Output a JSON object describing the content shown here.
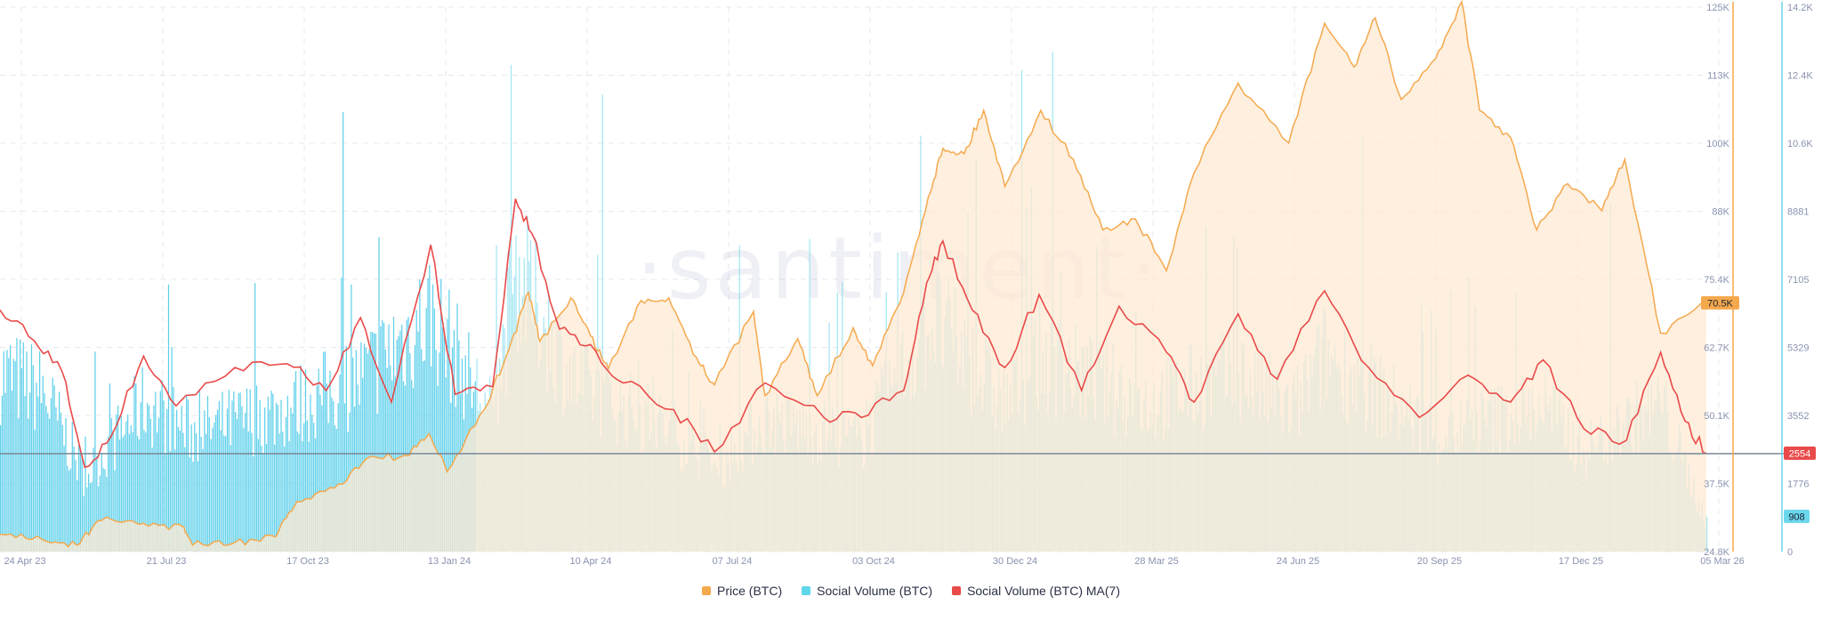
{
  "watermark": "·santiment·",
  "legend": [
    {
      "label": "Price (BTC)",
      "color": "#f5a94d"
    },
    {
      "label": "Social Volume (BTC)",
      "color": "#5fd6ea"
    },
    {
      "label": "Social Volume (BTC) MA(7)",
      "color": "#e94a4a"
    }
  ],
  "colors": {
    "price_line": "#f5a94d",
    "price_fill": "#fde9d3",
    "volume_bar": "#6ad7ec",
    "volume_bar_early": "#55cdea",
    "ma_line": "#e94a4a",
    "current_line": "#7a8898",
    "grid": "#e6e8ef"
  },
  "chart_data": {
    "type": "line",
    "x_tick_labels": [
      "24 Apr 23",
      "21 Jul 23",
      "17 Oct 23",
      "13 Jan 24",
      "10 Apr 24",
      "07 Jul 24",
      "03 Oct 24",
      "30 Dec 24",
      "28 Mar 25",
      "24 Jun 25",
      "20 Sep 25",
      "17 Dec 25",
      "05 Mar 26"
    ],
    "x_range": [
      "2023-04-24",
      "2026-03-05"
    ],
    "y_left": {
      "label": "Price (BTC)",
      "range": [
        24800,
        125000
      ],
      "tick_labels": [
        "24.8K",
        "37.5K",
        "50.1K",
        "62.7K",
        "75.4K",
        "88K",
        "100K",
        "113K",
        "125K"
      ]
    },
    "y_right": {
      "label": "Social Volume (BTC)",
      "range": [
        0,
        14200
      ],
      "tick_labels": [
        "0",
        "1776",
        "3552",
        "5329",
        "7105",
        "8881",
        "10.6K",
        "12.4K",
        "14.2K"
      ]
    },
    "current_values": {
      "price": "70.5K",
      "social_volume_ma7": "2554",
      "social_volume": "908"
    },
    "series": [
      {
        "name": "Price (BTC)",
        "axis": "left",
        "points": [
          [
            "2023-04-24",
            28000
          ],
          [
            "2023-05-20",
            27000
          ],
          [
            "2023-06-10",
            26000
          ],
          [
            "2023-06-25",
            30500
          ],
          [
            "2023-07-21",
            30000
          ],
          [
            "2023-08-15",
            29200
          ],
          [
            "2023-08-20",
            26000
          ],
          [
            "2023-09-15",
            26500
          ],
          [
            "2023-10-10",
            27500
          ],
          [
            "2023-10-23",
            34000
          ],
          [
            "2023-11-15",
            36500
          ],
          [
            "2023-12-05",
            42000
          ],
          [
            "2023-12-31",
            42500
          ],
          [
            "2024-01-12",
            46500
          ],
          [
            "2024-01-23",
            39500
          ],
          [
            "2024-02-15",
            51000
          ],
          [
            "2024-03-01",
            62000
          ],
          [
            "2024-03-13",
            72500
          ],
          [
            "2024-03-20",
            63500
          ],
          [
            "2024-04-08",
            71500
          ],
          [
            "2024-04-20",
            64500
          ],
          [
            "2024-05-01",
            58500
          ],
          [
            "2024-05-21",
            71000
          ],
          [
            "2024-06-07",
            71500
          ],
          [
            "2024-06-24",
            60500
          ],
          [
            "2024-07-05",
            55500
          ],
          [
            "2024-07-29",
            69000
          ],
          [
            "2024-08-05",
            53500
          ],
          [
            "2024-08-25",
            64000
          ],
          [
            "2024-09-06",
            53500
          ],
          [
            "2024-09-28",
            66000
          ],
          [
            "2024-10-10",
            59000
          ],
          [
            "2024-10-29",
            72500
          ],
          [
            "2024-11-13",
            90000
          ],
          [
            "2024-11-22",
            99000
          ],
          [
            "2024-12-05",
            98000
          ],
          [
            "2024-12-17",
            106000
          ],
          [
            "2024-12-30",
            92000
          ],
          [
            "2025-01-21",
            106000
          ],
          [
            "2025-02-10",
            97000
          ],
          [
            "2025-02-28",
            84000
          ],
          [
            "2025-03-20",
            86000
          ],
          [
            "2025-04-08",
            76500
          ],
          [
            "2025-04-25",
            94500
          ],
          [
            "2025-05-22",
            111000
          ],
          [
            "2025-06-22",
            100000
          ],
          [
            "2025-07-14",
            122000
          ],
          [
            "2025-08-01",
            114000
          ],
          [
            "2025-08-14",
            123000
          ],
          [
            "2025-08-30",
            108000
          ],
          [
            "2025-09-20",
            115500
          ],
          [
            "2025-10-06",
            126000
          ],
          [
            "2025-10-17",
            106000
          ],
          [
            "2025-11-05",
            101000
          ],
          [
            "2025-11-21",
            84000
          ],
          [
            "2025-12-10",
            92500
          ],
          [
            "2025-12-31",
            87500
          ],
          [
            "2026-01-14",
            97000
          ],
          [
            "2026-02-05",
            65000
          ],
          [
            "2026-03-05",
            70500
          ]
        ]
      },
      {
        "name": "Social Volume (BTC) MA(7)",
        "axis": "right",
        "points": [
          [
            "2023-04-24",
            6300
          ],
          [
            "2023-05-15",
            5500
          ],
          [
            "2023-06-01",
            4700
          ],
          [
            "2023-06-15",
            2200
          ],
          [
            "2023-07-01",
            3000
          ],
          [
            "2023-07-21",
            5100
          ],
          [
            "2023-08-10",
            3800
          ],
          [
            "2023-09-15",
            4800
          ],
          [
            "2023-10-17",
            4900
          ],
          [
            "2023-11-10",
            4200
          ],
          [
            "2023-12-01",
            6100
          ],
          [
            "2023-12-20",
            3900
          ],
          [
            "2024-01-13",
            8000
          ],
          [
            "2024-01-28",
            4100
          ],
          [
            "2024-02-20",
            4300
          ],
          [
            "2024-03-05",
            9200
          ],
          [
            "2024-03-15",
            8300
          ],
          [
            "2024-04-01",
            5800
          ],
          [
            "2024-04-20",
            5400
          ],
          [
            "2024-05-10",
            4400
          ],
          [
            "2024-06-10",
            3700
          ],
          [
            "2024-07-05",
            2600
          ],
          [
            "2024-08-05",
            4400
          ],
          [
            "2024-09-10",
            3500
          ],
          [
            "2024-10-03",
            3500
          ],
          [
            "2024-10-29",
            4200
          ],
          [
            "2024-11-12",
            7000
          ],
          [
            "2024-11-22",
            8100
          ],
          [
            "2024-12-10",
            6300
          ],
          [
            "2024-12-30",
            4800
          ],
          [
            "2025-01-20",
            6700
          ],
          [
            "2025-02-15",
            4200
          ],
          [
            "2025-03-10",
            6400
          ],
          [
            "2025-04-08",
            5200
          ],
          [
            "2025-04-25",
            3900
          ],
          [
            "2025-05-22",
            6200
          ],
          [
            "2025-06-15",
            4500
          ],
          [
            "2025-07-14",
            6800
          ],
          [
            "2025-08-10",
            4800
          ],
          [
            "2025-09-10",
            3500
          ],
          [
            "2025-10-10",
            4600
          ],
          [
            "2025-11-05",
            3900
          ],
          [
            "2025-11-25",
            5000
          ],
          [
            "2025-12-20",
            3200
          ],
          [
            "2026-01-15",
            2900
          ],
          [
            "2026-02-05",
            5200
          ],
          [
            "2026-02-20",
            3400
          ],
          [
            "2026-03-05",
            2554
          ]
        ]
      },
      {
        "name": "Social Volume (BTC)",
        "axis": "right",
        "type": "bar",
        "envelope": [
          [
            "2023-04-24",
            6000
          ],
          [
            "2023-05-20",
            5400
          ],
          [
            "2023-06-15",
            2500
          ],
          [
            "2023-07-21",
            5000
          ],
          [
            "2023-08-20",
            4000
          ],
          [
            "2023-10-17",
            4800
          ],
          [
            "2023-12-01",
            5800
          ],
          [
            "2024-01-13",
            8000
          ],
          [
            "2024-02-20",
            4500
          ],
          [
            "2024-03-05",
            9500
          ],
          [
            "2024-04-10",
            5700
          ],
          [
            "2024-06-10",
            4000
          ],
          [
            "2024-07-07",
            2800
          ],
          [
            "2024-08-05",
            4500
          ],
          [
            "2024-10-03",
            3700
          ],
          [
            "2024-11-15",
            7800
          ],
          [
            "2024-12-30",
            5000
          ],
          [
            "2025-01-20",
            6500
          ],
          [
            "2025-03-28",
            5000
          ],
          [
            "2025-05-22",
            6000
          ],
          [
            "2025-06-24",
            4700
          ],
          [
            "2025-07-14",
            6600
          ],
          [
            "2025-09-20",
            3900
          ],
          [
            "2025-11-25",
            4900
          ],
          [
            "2025-12-20",
            3400
          ],
          [
            "2026-02-05",
            5000
          ],
          [
            "2026-03-05",
            908
          ]
        ]
      }
    ],
    "grid": true,
    "legend_position": "bottom-center"
  }
}
